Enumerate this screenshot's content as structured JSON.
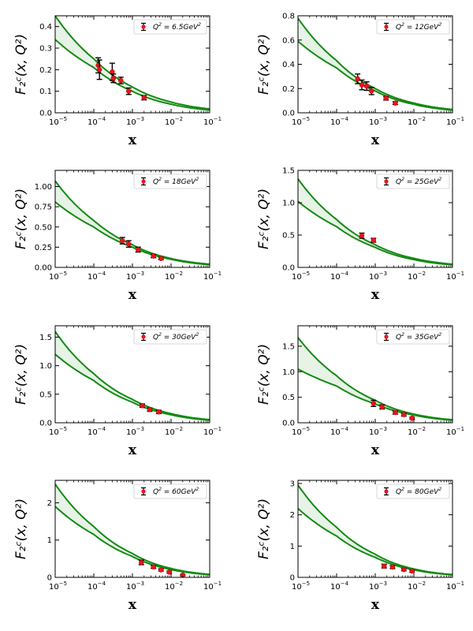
{
  "figure": {
    "description_free": true
  },
  "colors": {
    "band_fill": "#e6f3e6",
    "curve": "#138a13",
    "point": "#e8141e",
    "errorbar": "#000000"
  },
  "chart_data": [
    {
      "type": "line",
      "legend": "Q² = 6.5GeV²",
      "legend_parts": {
        "q": "Q",
        "eq": " = 6.5GeV",
        "sup": "2"
      },
      "xlabel": "x",
      "ylabel": "F₂ᶜ(x, Q²)",
      "xscale": "log",
      "xlim": [
        1e-05,
        0.1
      ],
      "ylim": [
        0,
        0.45
      ],
      "yticks": [
        0.0,
        0.1,
        0.2,
        0.3,
        0.4
      ],
      "ytick_labels": [
        "0.0",
        "0.1",
        "0.2",
        "0.3",
        "0.4"
      ],
      "xticks": [
        1e-05,
        0.0001,
        0.001,
        0.01,
        0.1
      ],
      "xtick_labels": [
        [
          "10",
          "−5"
        ],
        [
          "10",
          "−4"
        ],
        [
          "10",
          "−3"
        ],
        [
          "10",
          "−2"
        ],
        [
          "10",
          "−1"
        ]
      ],
      "band_upper": {
        "x": [
          1e-05,
          0.0001,
          0.001,
          0.01,
          0.1
        ],
        "y": [
          0.45,
          0.25,
          0.12,
          0.05,
          0.018
        ]
      },
      "band_lower": {
        "x": [
          1e-05,
          0.0001,
          0.001,
          0.01,
          0.1
        ],
        "y": [
          0.34,
          0.21,
          0.1,
          0.04,
          0.013
        ]
      },
      "points": [
        {
          "x": 0.00013,
          "y": 0.22,
          "err": 0.035
        },
        {
          "x": 0.00014,
          "y": 0.2,
          "err": 0.045
        },
        {
          "x": 0.0003,
          "y": 0.19,
          "err": 0.04
        },
        {
          "x": 0.00032,
          "y": 0.16,
          "err": 0.02
        },
        {
          "x": 0.0005,
          "y": 0.15,
          "err": 0.015
        },
        {
          "x": 0.0008,
          "y": 0.1,
          "err": 0.015
        },
        {
          "x": 0.002,
          "y": 0.07,
          "err": 0.01
        }
      ]
    },
    {
      "type": "line",
      "legend": "Q² = 12GeV²",
      "legend_parts": {
        "q": "Q",
        "eq": " = 12GeV",
        "sup": "2"
      },
      "xlabel": "x",
      "ylabel": "F₂ᶜ(x, Q²)",
      "xscale": "log",
      "xlim": [
        1e-05,
        0.1
      ],
      "ylim": [
        0,
        0.8
      ],
      "yticks": [
        0.0,
        0.2,
        0.4,
        0.6,
        0.8
      ],
      "ytick_labels": [
        "0.0",
        "0.2",
        "0.4",
        "0.6",
        "0.8"
      ],
      "xticks": [
        1e-05,
        0.0001,
        0.001,
        0.01,
        0.1
      ],
      "xtick_labels": [
        [
          "10",
          "−5"
        ],
        [
          "10",
          "−4"
        ],
        [
          "10",
          "−3"
        ],
        [
          "10",
          "−2"
        ],
        [
          "10",
          "−1"
        ]
      ],
      "band_upper": {
        "x": [
          1e-05,
          0.0001,
          0.001,
          0.01,
          0.1
        ],
        "y": [
          0.78,
          0.43,
          0.2,
          0.08,
          0.028
        ]
      },
      "band_lower": {
        "x": [
          1e-05,
          0.0001,
          0.001,
          0.01,
          0.1
        ],
        "y": [
          0.59,
          0.37,
          0.18,
          0.07,
          0.022
        ]
      },
      "points": [
        {
          "x": 0.00035,
          "y": 0.28,
          "err": 0.04
        },
        {
          "x": 0.00045,
          "y": 0.23,
          "err": 0.04
        },
        {
          "x": 0.0006,
          "y": 0.22,
          "err": 0.035
        },
        {
          "x": 0.0008,
          "y": 0.18,
          "err": 0.03
        },
        {
          "x": 0.0019,
          "y": 0.12,
          "err": 0.015
        },
        {
          "x": 0.0033,
          "y": 0.08,
          "err": 0.012
        }
      ]
    },
    {
      "type": "line",
      "legend": "Q² = 18GeV²",
      "legend_parts": {
        "q": "Q",
        "eq": " = 18GeV",
        "sup": "2"
      },
      "xlabel": "x",
      "ylabel": "F₂ᶜ(x, Q²)",
      "xscale": "log",
      "xlim": [
        1e-05,
        0.1
      ],
      "ylim": [
        0,
        1.2
      ],
      "yticks": [
        0.0,
        0.25,
        0.5,
        0.75,
        1.0
      ],
      "ytick_labels": [
        "0.00",
        "0.25",
        "0.50",
        "0.75",
        "1.00"
      ],
      "xticks": [
        1e-05,
        0.0001,
        0.001,
        0.01,
        0.1
      ],
      "xtick_labels": [
        [
          "10",
          "−5"
        ],
        [
          "10",
          "−4"
        ],
        [
          "10",
          "−3"
        ],
        [
          "10",
          "−2"
        ],
        [
          "10",
          "−1"
        ]
      ],
      "band_upper": {
        "x": [
          1e-05,
          0.0001,
          0.001,
          0.01,
          0.1
        ],
        "y": [
          1.07,
          0.58,
          0.28,
          0.11,
          0.04
        ]
      },
      "band_lower": {
        "x": [
          1e-05,
          0.0001,
          0.001,
          0.01,
          0.1
        ],
        "y": [
          0.81,
          0.5,
          0.25,
          0.1,
          0.033
        ]
      },
      "points": [
        {
          "x": 0.00055,
          "y": 0.33,
          "err": 0.04
        },
        {
          "x": 0.0008,
          "y": 0.29,
          "err": 0.04
        },
        {
          "x": 0.0014,
          "y": 0.22,
          "err": 0.03
        },
        {
          "x": 0.0035,
          "y": 0.14,
          "err": 0.02
        },
        {
          "x": 0.0055,
          "y": 0.11,
          "err": 0.015
        }
      ]
    },
    {
      "type": "line",
      "legend": "Q² = 25GeV²",
      "legend_parts": {
        "q": "Q",
        "eq": " = 25GeV",
        "sup": "2"
      },
      "xlabel": "x",
      "ylabel": "F₂ᶜ(x, Q²)",
      "xscale": "log",
      "xlim": [
        1e-05,
        0.1
      ],
      "ylim": [
        0,
        1.5
      ],
      "yticks": [
        0.0,
        0.5,
        1.0,
        1.5
      ],
      "ytick_labels": [
        "0.0",
        "0.5",
        "1.0",
        "1.5"
      ],
      "xticks": [
        1e-05,
        0.0001,
        0.001,
        0.01,
        0.1
      ],
      "xtick_labels": [
        [
          "10",
          "−5"
        ],
        [
          "10",
          "−4"
        ],
        [
          "10",
          "−3"
        ],
        [
          "10",
          "−2"
        ],
        [
          "10",
          "−1"
        ]
      ],
      "band_upper": {
        "x": [
          1e-05,
          0.0001,
          0.001,
          0.01,
          0.1
        ],
        "y": [
          1.37,
          0.74,
          0.35,
          0.14,
          0.05
        ]
      },
      "band_lower": {
        "x": [
          1e-05,
          0.0001,
          0.001,
          0.01,
          0.1
        ],
        "y": [
          1.02,
          0.63,
          0.31,
          0.12,
          0.04
        ]
      },
      "points": [
        {
          "x": 0.00045,
          "y": 0.49,
          "err": 0.04
        },
        {
          "x": 0.0009,
          "y": 0.42,
          "err": 0.03
        }
      ]
    },
    {
      "type": "line",
      "legend": "Q² = 30GeV²",
      "legend_parts": {
        "q": "Q",
        "eq": " = 30GeV",
        "sup": "2"
      },
      "xlabel": "x",
      "ylabel": "F₂ᶜ(x, Q²)",
      "xscale": "log",
      "xlim": [
        1e-05,
        0.1
      ],
      "ylim": [
        0,
        1.7
      ],
      "yticks": [
        0.0,
        0.5,
        1.0,
        1.5
      ],
      "ytick_labels": [
        "0.0",
        "0.5",
        "1.0",
        "1.5"
      ],
      "xticks": [
        1e-05,
        0.0001,
        0.001,
        0.01,
        0.1
      ],
      "xtick_labels": [
        [
          "10",
          "−5"
        ],
        [
          "10",
          "−4"
        ],
        [
          "10",
          "−3"
        ],
        [
          "10",
          "−2"
        ],
        [
          "10",
          "−1"
        ]
      ],
      "band_upper": {
        "x": [
          1e-05,
          0.0001,
          0.001,
          0.01,
          0.1
        ],
        "y": [
          1.6,
          0.86,
          0.41,
          0.16,
          0.055
        ]
      },
      "band_lower": {
        "x": [
          1e-05,
          0.0001,
          0.001,
          0.01,
          0.1
        ],
        "y": [
          1.2,
          0.74,
          0.36,
          0.14,
          0.045
        ]
      },
      "points": [
        {
          "x": 0.0018,
          "y": 0.3,
          "err": 0.03
        },
        {
          "x": 0.0028,
          "y": 0.23,
          "err": 0.03
        },
        {
          "x": 0.0048,
          "y": 0.19,
          "err": 0.03
        }
      ]
    },
    {
      "type": "line",
      "legend": "Q² = 35GeV²",
      "legend_parts": {
        "q": "Q",
        "eq": " = 35GeV",
        "sup": "2"
      },
      "xlabel": "x",
      "ylabel": "F₂ᶜ(x, Q²)",
      "xscale": "log",
      "xlim": [
        1e-05,
        0.1
      ],
      "ylim": [
        0,
        1.9
      ],
      "yticks": [
        0.0,
        0.5,
        1.0,
        1.5
      ],
      "ytick_labels": [
        "0.0",
        "0.5",
        "1.0",
        "1.5"
      ],
      "xticks": [
        1e-05,
        0.0001,
        0.001,
        0.01,
        0.1
      ],
      "xtick_labels": [
        [
          "10",
          "−5"
        ],
        [
          "10",
          "−4"
        ],
        [
          "10",
          "−3"
        ],
        [
          "10",
          "−2"
        ],
        [
          "10",
          "−1"
        ]
      ],
      "band_upper": {
        "x": [
          1e-05,
          0.0001,
          0.001,
          0.01,
          0.1
        ],
        "y": [
          1.67,
          0.92,
          0.44,
          0.17,
          0.06
        ]
      },
      "band_lower": {
        "x": [
          1e-05,
          0.0001,
          0.001,
          0.01,
          0.1
        ],
        "y": [
          1.05,
          0.72,
          0.37,
          0.15,
          0.05
        ]
      },
      "points": [
        {
          "x": 0.0009,
          "y": 0.38,
          "err": 0.06
        },
        {
          "x": 0.0015,
          "y": 0.31,
          "err": 0.04
        },
        {
          "x": 0.0033,
          "y": 0.2,
          "err": 0.03
        },
        {
          "x": 0.0055,
          "y": 0.16,
          "err": 0.03
        },
        {
          "x": 0.009,
          "y": 0.09,
          "err": 0.02
        }
      ]
    },
    {
      "type": "line",
      "legend": "Q² = 60GeV²",
      "legend_parts": {
        "q": "Q",
        "eq": " = 60GeV",
        "sup": "2"
      },
      "xlabel": "x",
      "ylabel": "F₂ᶜ(x, Q²)",
      "xscale": "log",
      "xlim": [
        1e-05,
        0.1
      ],
      "ylim": [
        0,
        2.6
      ],
      "yticks": [
        0,
        1,
        2
      ],
      "ytick_labels": [
        "0",
        "1",
        "2"
      ],
      "xticks": [
        1e-05,
        0.0001,
        0.001,
        0.01,
        0.1
      ],
      "xtick_labels": [
        [
          "10",
          "−5"
        ],
        [
          "10",
          "−4"
        ],
        [
          "10",
          "−3"
        ],
        [
          "10",
          "−2"
        ],
        [
          "10",
          "−1"
        ]
      ],
      "band_upper": {
        "x": [
          1e-05,
          0.0001,
          0.001,
          0.01,
          0.1
        ],
        "y": [
          2.5,
          1.36,
          0.64,
          0.24,
          0.08
        ]
      },
      "band_lower": {
        "x": [
          1e-05,
          0.0001,
          0.001,
          0.01,
          0.1
        ],
        "y": [
          1.9,
          1.15,
          0.56,
          0.21,
          0.07
        ]
      },
      "points": [
        {
          "x": 0.0017,
          "y": 0.4,
          "err": 0.06
        },
        {
          "x": 0.0035,
          "y": 0.28,
          "err": 0.04
        },
        {
          "x": 0.0055,
          "y": 0.2,
          "err": 0.03
        },
        {
          "x": 0.009,
          "y": 0.14,
          "err": 0.03
        },
        {
          "x": 0.02,
          "y": 0.06,
          "err": 0.02
        }
      ]
    },
    {
      "type": "line",
      "legend": "Q² = 80GeV²",
      "legend_parts": {
        "q": "Q",
        "eq": " = 80GeV",
        "sup": "2"
      },
      "xlabel": "x",
      "ylabel": "F₂ᶜ(x, Q²)",
      "xscale": "log",
      "xlim": [
        1e-05,
        0.1
      ],
      "ylim": [
        0,
        3.1
      ],
      "yticks": [
        0,
        1,
        2,
        3
      ],
      "ytick_labels": [
        "0",
        "1",
        "2",
        "3"
      ],
      "xticks": [
        1e-05,
        0.0001,
        0.001,
        0.01,
        0.1
      ],
      "xtick_labels": [
        [
          "10",
          "−5"
        ],
        [
          "10",
          "−4"
        ],
        [
          "10",
          "−3"
        ],
        [
          "10",
          "−2"
        ],
        [
          "10",
          "−1"
        ]
      ],
      "band_upper": {
        "x": [
          1e-05,
          0.0001,
          0.001,
          0.01,
          0.1
        ],
        "y": [
          2.95,
          1.6,
          0.74,
          0.27,
          0.09
        ]
      },
      "band_lower": {
        "x": [
          1e-05,
          0.0001,
          0.001,
          0.01,
          0.1
        ],
        "y": [
          2.2,
          1.32,
          0.64,
          0.24,
          0.08
        ]
      },
      "points": [
        {
          "x": 0.0017,
          "y": 0.36,
          "err": 0.06
        },
        {
          "x": 0.0028,
          "y": 0.33,
          "err": 0.05
        },
        {
          "x": 0.0055,
          "y": 0.25,
          "err": 0.04
        },
        {
          "x": 0.009,
          "y": 0.2,
          "err": 0.04
        }
      ]
    }
  ]
}
